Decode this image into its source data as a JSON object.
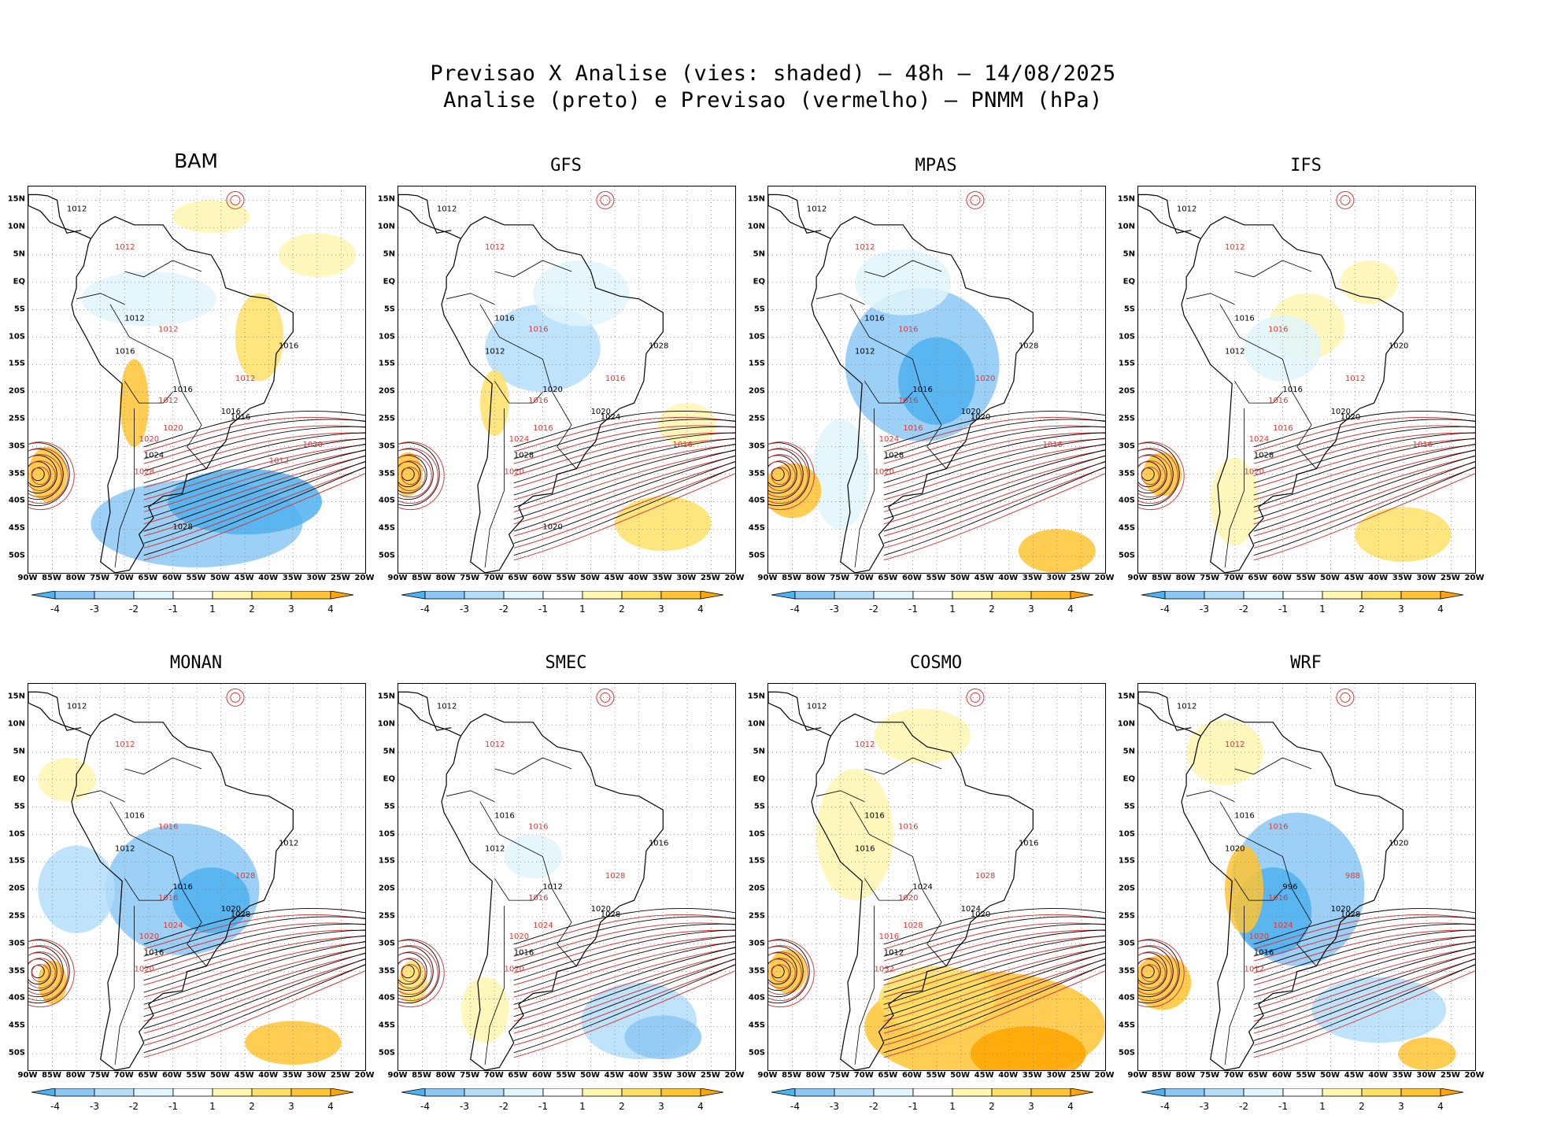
{
  "header": {
    "title_line1": "Previsao X Analise (vies: shaded) – 48h – 14/08/2025",
    "title_line2": "Analise (preto) e Previsao (vermelho) – PNMM (hPa)"
  },
  "axes": {
    "lat_labels": [
      "15N",
      "10N",
      "5N",
      "EQ",
      "5S",
      "10S",
      "15S",
      "20S",
      "25S",
      "30S",
      "35S",
      "40S",
      "45S",
      "50S"
    ],
    "lon_labels": [
      "90W",
      "85W",
      "80W",
      "75W",
      "70W",
      "65W",
      "60W",
      "55W",
      "50W",
      "45W",
      "40W",
      "35W",
      "30W",
      "25W",
      "20W"
    ]
  },
  "colorbar": {
    "ticks": [
      "-4",
      "-3",
      "-2",
      "-1",
      "1",
      "2",
      "3",
      "4"
    ],
    "colors": [
      "#4db2f0",
      "#8cc8f5",
      "#b4defa",
      "#e0f5fc",
      "#ffffff",
      "#fff6b0",
      "#ffe066",
      "#ffc433",
      "#ffa500"
    ]
  },
  "colors": {
    "analysis_contour": "#000000",
    "forecast_contour": "#d23c3c",
    "grid": "#808080"
  },
  "panels": [
    {
      "title": "BAM",
      "labels": [
        "1012",
        "1012",
        "1012",
        "1012",
        "1016",
        "1012",
        "1016",
        "1020",
        "1016",
        "1020",
        "1024",
        "1028",
        "1016",
        "1012",
        "1016",
        "1020",
        "1028",
        "1012"
      ]
    },
    {
      "title": "GFS",
      "labels": [
        "1012",
        "1012",
        "1016",
        "1016",
        "1012",
        "1016",
        "1020",
        "1016",
        "1024",
        "1024",
        "1028",
        "1020",
        "1020",
        "1016",
        "1028",
        "1016",
        "1020"
      ]
    },
    {
      "title": "MPAS",
      "labels": [
        "1012",
        "1012",
        "1016",
        "1016",
        "1012",
        "1016",
        "1020",
        "1016",
        "1020",
        "1024",
        "1028",
        "1020",
        "1016",
        "1020",
        "1028",
        "1016"
      ]
    },
    {
      "title": "IFS",
      "labels": [
        "1012",
        "1012",
        "1016",
        "1016",
        "1012",
        "1016",
        "1020",
        "1016",
        "1020",
        "1024",
        "1028",
        "1020",
        "1016",
        "1012",
        "1020",
        "1016"
      ]
    },
    {
      "title": "MONAN",
      "labels": [
        "1012",
        "1012",
        "1016",
        "1016",
        "1012",
        "1016",
        "1020",
        "1024",
        "1028",
        "1020",
        "1016",
        "1020",
        "1016",
        "1028",
        "1012"
      ]
    },
    {
      "title": "SMEC",
      "labels": [
        "1012",
        "1012",
        "1016",
        "1016",
        "1012",
        "1016",
        "1020",
        "1024",
        "1028",
        "1020",
        "1016",
        "1020",
        "1012",
        "1028",
        "1016"
      ]
    },
    {
      "title": "COSMO",
      "labels": [
        "1012",
        "1012",
        "1016",
        "1016",
        "1016",
        "1020",
        "1024",
        "1028",
        "1020",
        "1016",
        "1012",
        "1032",
        "1024",
        "1028",
        "1016"
      ]
    },
    {
      "title": "WRF",
      "labels": [
        "1012",
        "1012",
        "1016",
        "1016",
        "1020",
        "1016",
        "1020",
        "1024",
        "1028",
        "1020",
        "1016",
        "1012",
        "996",
        "988",
        "1020"
      ]
    }
  ]
}
